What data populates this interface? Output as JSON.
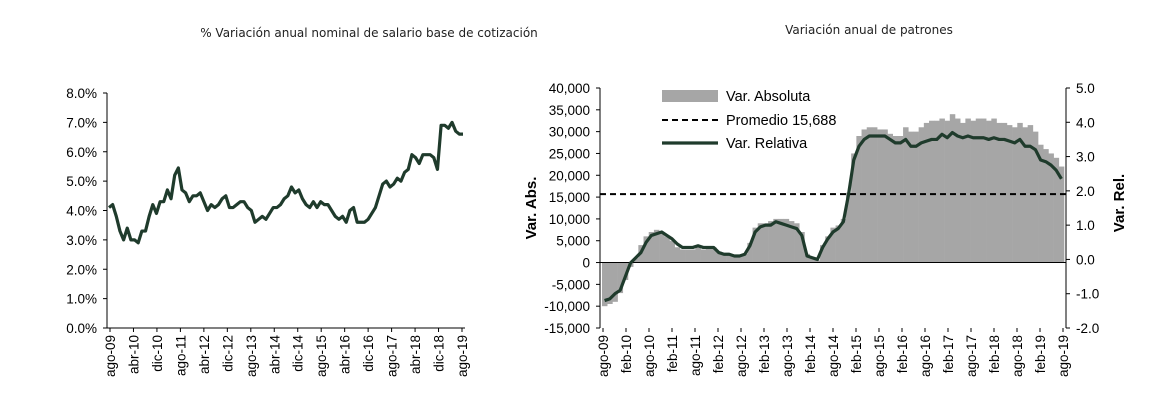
{
  "chart_data": [
    {
      "type": "line",
      "title": "% Variación anual nominal de salario base de cotización",
      "y_ticks": [
        "0.0%",
        "1.0%",
        "2.0%",
        "3.0%",
        "4.0%",
        "5.0%",
        "6.0%",
        "7.0%",
        "8.0%"
      ],
      "ylim": [
        0,
        8
      ],
      "x_ticks": [
        "ago-09",
        "abr-10",
        "dic-10",
        "ago-11",
        "abr-12",
        "dic-12",
        "ago-13",
        "abr-14",
        "dic-14",
        "ago-15",
        "abr-16",
        "dic-16",
        "ago-17",
        "abr-18",
        "dic-18",
        "ago-19"
      ],
      "series": [
        {
          "name": "% Variación anual",
          "color": "#1f3b2c",
          "values": [
            4.1,
            4.2,
            3.8,
            3.3,
            3.0,
            3.4,
            3.0,
            3.0,
            2.9,
            3.3,
            3.3,
            3.8,
            4.2,
            3.9,
            4.3,
            4.3,
            4.7,
            4.4,
            5.2,
            5.45,
            4.7,
            4.6,
            4.3,
            4.5,
            4.5,
            4.6,
            4.3,
            4.0,
            4.2,
            4.1,
            4.2,
            4.4,
            4.5,
            4.1,
            4.1,
            4.2,
            4.3,
            4.3,
            4.1,
            4.0,
            3.6,
            3.7,
            3.8,
            3.7,
            3.9,
            4.1,
            4.1,
            4.2,
            4.4,
            4.5,
            4.8,
            4.6,
            4.7,
            4.4,
            4.2,
            4.1,
            4.3,
            4.1,
            4.3,
            4.2,
            4.2,
            4.0,
            3.8,
            3.7,
            3.8,
            3.6,
            4.0,
            4.1,
            3.6,
            3.6,
            3.6,
            3.7,
            3.9,
            4.1,
            4.5,
            4.9,
            5.0,
            4.8,
            4.9,
            5.1,
            5.0,
            5.3,
            5.4,
            5.9,
            5.8,
            5.6,
            5.9,
            5.9,
            5.9,
            5.8,
            5.4,
            6.9,
            6.9,
            6.8,
            7.0,
            6.7,
            6.6,
            6.6
          ]
        }
      ]
    },
    {
      "type": "bar+line",
      "title": "Variación anual de patrones",
      "ylabel": "Var. Abs.",
      "ylabel_right": "Var. Rel.",
      "ylim": [
        -15000,
        40000
      ],
      "ylim_right": [
        -2.0,
        5.0
      ],
      "y_ticks": [
        "-15,000",
        "-10,000",
        "-5,000",
        "0",
        "5,000",
        "10,000",
        "15,000",
        "20,000",
        "25,000",
        "30,000",
        "35,000",
        "40,000"
      ],
      "y_ticks_right": [
        "-2.0",
        "-1.0",
        "0.0",
        "1.0",
        "2.0",
        "3.0",
        "4.0",
        "5.0"
      ],
      "x_ticks": [
        "ago-09",
        "feb-10",
        "ago-10",
        "feb-11",
        "ago-11",
        "feb-12",
        "ago-12",
        "feb-13",
        "ago-13",
        "feb-14",
        "ago-14",
        "feb-15",
        "ago-15",
        "feb-16",
        "ago-16",
        "feb-17",
        "ago-17",
        "feb-18",
        "ago-18",
        "feb-19",
        "ago-19"
      ],
      "legend": [
        "Var. Absoluta",
        "Promedio 15,688",
        "Var. Relativa"
      ],
      "average": 15688,
      "colors": {
        "bars": "#a6a6a6",
        "line": "#1f3b2c",
        "average": "#000000"
      },
      "series": [
        {
          "name": "Var. Absoluta",
          "values": [
            -10000,
            -9500,
            -9000,
            -7000,
            -4000,
            -1000,
            1000,
            4000,
            6000,
            7000,
            7500,
            7000,
            6000,
            5000,
            3500,
            3000,
            3000,
            3000,
            3500,
            3000,
            3500,
            3500,
            2500,
            2000,
            2000,
            1500,
            1500,
            2000,
            4500,
            8000,
            9000,
            9000,
            9500,
            10000,
            10000,
            10000,
            9500,
            9000,
            7000,
            2000,
            1000,
            500,
            4000,
            6000,
            8000,
            8500,
            10000,
            16000,
            25000,
            29000,
            30500,
            31000,
            31000,
            30500,
            30500,
            29500,
            29000,
            29000,
            31000,
            30000,
            30000,
            31000,
            32000,
            32500,
            32500,
            33000,
            32500,
            34000,
            33000,
            32000,
            33000,
            32500,
            33000,
            33000,
            32500,
            33000,
            32000,
            32000,
            31500,
            31000,
            32000,
            31000,
            31500,
            30000,
            27000,
            26000,
            25000,
            24000,
            22000
          ]
        },
        {
          "name": "Var. Relativa",
          "values": [
            -1.2,
            -1.15,
            -1.0,
            -0.9,
            -0.5,
            -0.1,
            0.05,
            0.2,
            0.5,
            0.7,
            0.75,
            0.8,
            0.7,
            0.6,
            0.45,
            0.35,
            0.35,
            0.35,
            0.4,
            0.35,
            0.35,
            0.35,
            0.2,
            0.15,
            0.15,
            0.1,
            0.1,
            0.15,
            0.4,
            0.8,
            0.95,
            1.0,
            1.0,
            1.1,
            1.05,
            1.0,
            0.95,
            0.9,
            0.7,
            0.1,
            0.05,
            0.0,
            0.35,
            0.6,
            0.8,
            0.9,
            1.1,
            1.9,
            2.9,
            3.3,
            3.5,
            3.6,
            3.6,
            3.6,
            3.6,
            3.5,
            3.4,
            3.4,
            3.5,
            3.3,
            3.3,
            3.4,
            3.45,
            3.5,
            3.5,
            3.65,
            3.55,
            3.7,
            3.6,
            3.55,
            3.6,
            3.55,
            3.55,
            3.55,
            3.5,
            3.55,
            3.5,
            3.5,
            3.45,
            3.4,
            3.5,
            3.3,
            3.3,
            3.2,
            2.9,
            2.85,
            2.75,
            2.6,
            2.35
          ]
        }
      ]
    }
  ]
}
